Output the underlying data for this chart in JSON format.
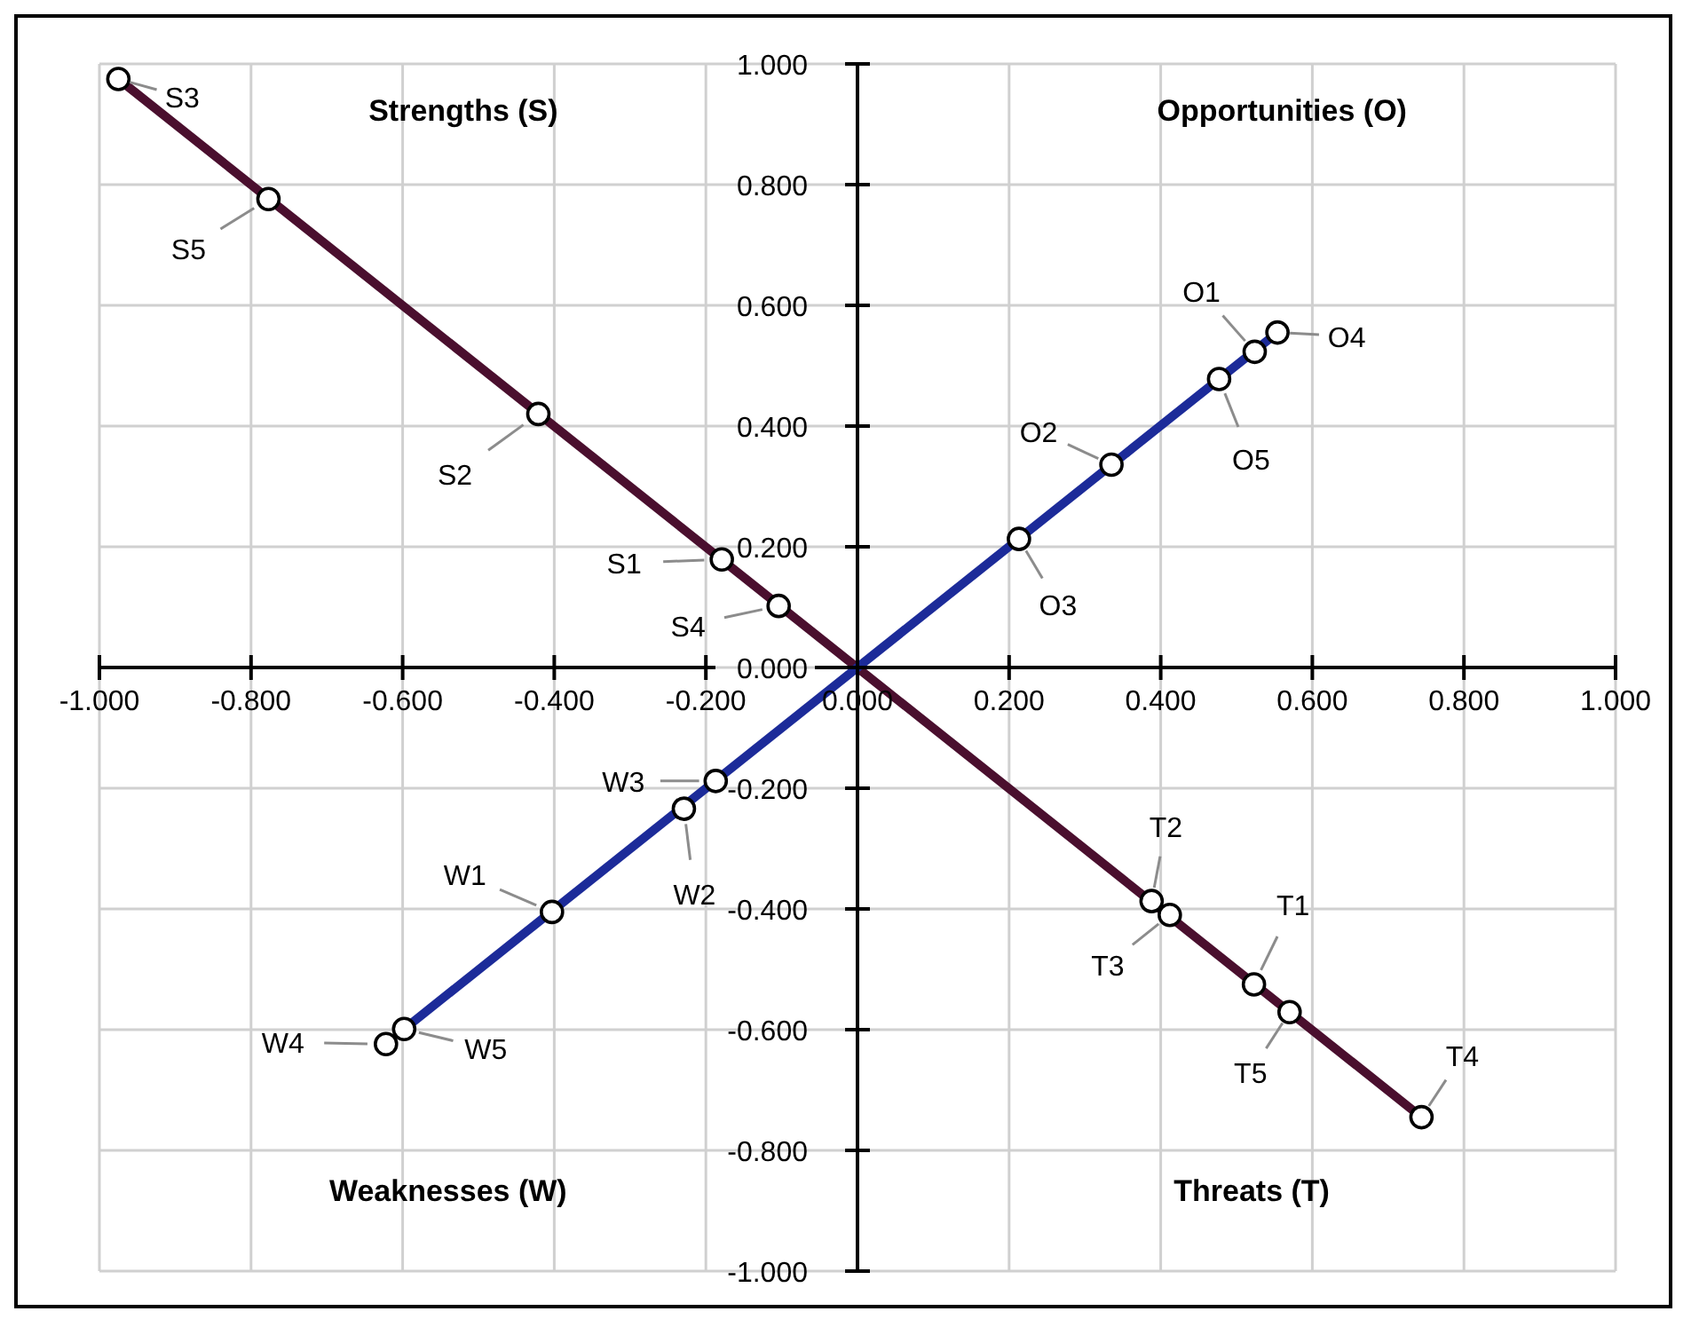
{
  "chart_data": {
    "type": "line",
    "xlim": [
      -1,
      1
    ],
    "ylim": [
      -1,
      1
    ],
    "xticks": [
      {
        "value": -1,
        "label": "-1.000"
      },
      {
        "value": -0.8,
        "label": "-0.800"
      },
      {
        "value": -0.6,
        "label": "-0.600"
      },
      {
        "value": -0.4,
        "label": "-0.400"
      },
      {
        "value": -0.2,
        "label": "-0.200"
      },
      {
        "value": 0,
        "label": "0.000"
      },
      {
        "value": 0.2,
        "label": "0.200"
      },
      {
        "value": 0.4,
        "label": "0.400"
      },
      {
        "value": 0.6,
        "label": "0.600"
      },
      {
        "value": 0.8,
        "label": "0.800"
      },
      {
        "value": 1,
        "label": "1.000"
      }
    ],
    "yticks": [
      {
        "value": -1,
        "label": "-1.000"
      },
      {
        "value": -0.8,
        "label": "-0.800"
      },
      {
        "value": -0.6,
        "label": "-0.600"
      },
      {
        "value": -0.4,
        "label": "-0.400"
      },
      {
        "value": -0.2,
        "label": "-0.200"
      },
      {
        "value": 0,
        "label": "0.000"
      },
      {
        "value": 0.2,
        "label": "0.200"
      },
      {
        "value": 0.4,
        "label": "0.400"
      },
      {
        "value": 0.6,
        "label": "0.600"
      },
      {
        "value": 0.8,
        "label": "0.800"
      },
      {
        "value": 1,
        "label": "1.000"
      }
    ],
    "grid": true,
    "legend": false,
    "marker": "circle",
    "series": [
      {
        "marker": "none",
        "color": "#4a0f2e",
        "x": [
          -0.975,
          0.744
        ],
        "values": [
          0.975,
          -0.745
        ]
      },
      {
        "marker": "none",
        "color": "#1c2b99",
        "x": [
          -0.598,
          0.554
        ],
        "values": [
          -0.599,
          0.555
        ]
      },
      {
        "type": "scatter",
        "color": "#000000",
        "x": [
          -0.179,
          -0.421,
          -0.975,
          -0.104,
          -0.777
        ],
        "values": [
          0.179,
          0.42,
          0.975,
          0.102,
          0.776
        ]
      },
      {
        "type": "scatter",
        "color": "#000000",
        "x": [
          0.524,
          0.335,
          0.213,
          0.554,
          0.477
        ],
        "values": [
          0.523,
          0.336,
          0.213,
          0.555,
          0.478
        ]
      },
      {
        "type": "scatter",
        "color": "#000000",
        "x": [
          -0.403,
          -0.229,
          -0.187,
          -0.622,
          -0.598
        ],
        "values": [
          -0.405,
          -0.234,
          -0.188,
          -0.624,
          -0.599
        ]
      },
      {
        "type": "scatter",
        "color": "#000000",
        "x": [
          0.523,
          0.388,
          0.412,
          0.744,
          0.57
        ],
        "values": [
          -0.525,
          -0.387,
          -0.41,
          -0.745,
          -0.571
        ]
      }
    ],
    "annotations": [
      "Strengths (S)",
      "Opportunities (O)",
      "Weaknesses (W)",
      "Threats (T)",
      {
        "text": "S1",
        "x": -0.179,
        "y": 0.179
      },
      {
        "text": "S2",
        "x": -0.421,
        "y": 0.42
      },
      {
        "text": "S3",
        "x": -0.975,
        "y": 0.975
      },
      {
        "text": "S4",
        "x": -0.104,
        "y": 0.102
      },
      {
        "text": "S5",
        "x": -0.777,
        "y": 0.776
      },
      {
        "text": "O1",
        "x": 0.524,
        "y": 0.523
      },
      {
        "text": "O2",
        "x": 0.335,
        "y": 0.336
      },
      {
        "text": "O3",
        "x": 0.213,
        "y": 0.213
      },
      {
        "text": "O4",
        "x": 0.554,
        "y": 0.555
      },
      {
        "text": "O5",
        "x": 0.477,
        "y": 0.478
      },
      {
        "text": "W1",
        "x": -0.403,
        "y": -0.405
      },
      {
        "text": "W2",
        "x": -0.229,
        "y": -0.234
      },
      {
        "text": "W3",
        "x": -0.187,
        "y": -0.188
      },
      {
        "text": "W4",
        "x": -0.622,
        "y": -0.624
      },
      {
        "text": "W5",
        "x": -0.598,
        "y": -0.599
      },
      {
        "text": "T1",
        "x": 0.523,
        "y": -0.525
      },
      {
        "text": "T2",
        "x": 0.388,
        "y": -0.387
      },
      {
        "text": "T3",
        "x": 0.412,
        "y": -0.41
      },
      {
        "text": "T4",
        "x": 0.744,
        "y": -0.745
      },
      {
        "text": "T5",
        "x": 0.57,
        "y": -0.571
      }
    ]
  }
}
